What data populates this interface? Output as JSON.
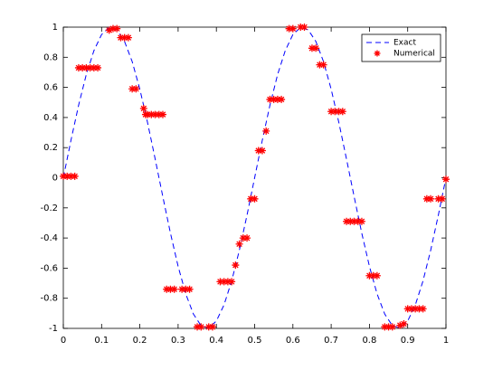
{
  "chart_data": {
    "type": "line",
    "xlim": [
      0,
      1
    ],
    "ylim": [
      -1,
      1
    ],
    "xticks": [
      0,
      0.1,
      0.2,
      0.3,
      0.4,
      0.5,
      0.6,
      0.7,
      0.8,
      0.9,
      1
    ],
    "yticks": [
      -1,
      -0.8,
      -0.6,
      -0.4,
      -0.2,
      0,
      0.2,
      0.4,
      0.6,
      0.8,
      1
    ],
    "grid": false,
    "legend": "top-right",
    "series": [
      {
        "name": "Exact",
        "color": "#0000ff",
        "style": "dashed",
        "x": [
          0,
          0.02,
          0.04,
          0.06,
          0.08,
          0.1,
          0.12,
          0.14,
          0.16,
          0.18,
          0.2,
          0.22,
          0.24,
          0.26,
          0.28,
          0.3,
          0.32,
          0.34,
          0.36,
          0.38,
          0.4,
          0.42,
          0.44,
          0.46,
          0.48,
          0.5,
          0.52,
          0.54,
          0.56,
          0.58,
          0.6,
          0.62,
          0.64,
          0.66,
          0.68,
          0.7,
          0.72,
          0.74,
          0.76,
          0.78,
          0.8,
          0.82,
          0.84,
          0.86,
          0.88,
          0.9,
          0.92,
          0.94,
          0.96,
          0.98,
          1
        ],
        "values": [
          0,
          0.249,
          0.482,
          0.685,
          0.844,
          0.951,
          0.998,
          0.982,
          0.905,
          0.771,
          0.588,
          0.368,
          0.125,
          -0.125,
          -0.368,
          -0.588,
          -0.771,
          -0.905,
          -0.982,
          -0.998,
          -0.951,
          -0.844,
          -0.685,
          -0.482,
          -0.249,
          0,
          0.249,
          0.482,
          0.685,
          0.844,
          0.951,
          0.998,
          0.982,
          0.905,
          0.771,
          0.588,
          0.368,
          0.125,
          -0.125,
          -0.368,
          -0.588,
          -0.771,
          -0.905,
          -0.982,
          -0.998,
          -0.951,
          -0.844,
          -0.685,
          -0.482,
          -0.249,
          0
        ]
      },
      {
        "name": "Numerical",
        "color": "#ff0000",
        "style": "asterisk",
        "x": [
          0,
          0.01,
          0.02,
          0.03,
          0.04,
          0.05,
          0.06,
          0.07,
          0.08,
          0.09,
          0.12,
          0.13,
          0.14,
          0.15,
          0.16,
          0.17,
          0.18,
          0.19,
          0.21,
          0.215,
          0.22,
          0.23,
          0.24,
          0.25,
          0.26,
          0.27,
          0.28,
          0.29,
          0.31,
          0.32,
          0.33,
          0.35,
          0.36,
          0.38,
          0.39,
          0.41,
          0.42,
          0.43,
          0.44,
          0.45,
          0.46,
          0.47,
          0.48,
          0.49,
          0.5,
          0.51,
          0.52,
          0.53,
          0.54,
          0.55,
          0.56,
          0.57,
          0.59,
          0.6,
          0.62,
          0.63,
          0.65,
          0.66,
          0.67,
          0.68,
          0.7,
          0.71,
          0.72,
          0.73,
          0.74,
          0.75,
          0.76,
          0.77,
          0.78,
          0.8,
          0.81,
          0.82,
          0.84,
          0.85,
          0.86,
          0.88,
          0.89,
          0.9,
          0.91,
          0.92,
          0.93,
          0.94,
          0.95,
          0.96,
          0.98,
          0.99,
          1
        ],
        "values": [
          0.01,
          0.01,
          0.01,
          0.01,
          0.73,
          0.73,
          0.73,
          0.73,
          0.73,
          0.73,
          0.98,
          0.99,
          0.99,
          0.93,
          0.93,
          0.93,
          0.59,
          0.59,
          0.46,
          0.42,
          0.42,
          0.42,
          0.42,
          0.42,
          0.42,
          -0.74,
          -0.74,
          -0.74,
          -0.74,
          -0.74,
          -0.74,
          -0.99,
          -0.99,
          -0.99,
          -0.99,
          -0.69,
          -0.69,
          -0.69,
          -0.69,
          -0.58,
          -0.44,
          -0.4,
          -0.4,
          -0.14,
          -0.14,
          0.18,
          0.18,
          0.31,
          0.52,
          0.52,
          0.52,
          0.52,
          0.99,
          0.99,
          1,
          1,
          0.86,
          0.86,
          0.75,
          0.75,
          0.44,
          0.44,
          0.44,
          0.44,
          -0.29,
          -0.29,
          -0.29,
          -0.29,
          -0.29,
          -0.65,
          -0.65,
          -0.65,
          -0.99,
          -0.99,
          -0.99,
          -0.98,
          -0.97,
          -0.87,
          -0.87,
          -0.87,
          -0.87,
          -0.87,
          -0.14,
          -0.14,
          -0.14,
          -0.14,
          -0.01
        ]
      }
    ]
  }
}
